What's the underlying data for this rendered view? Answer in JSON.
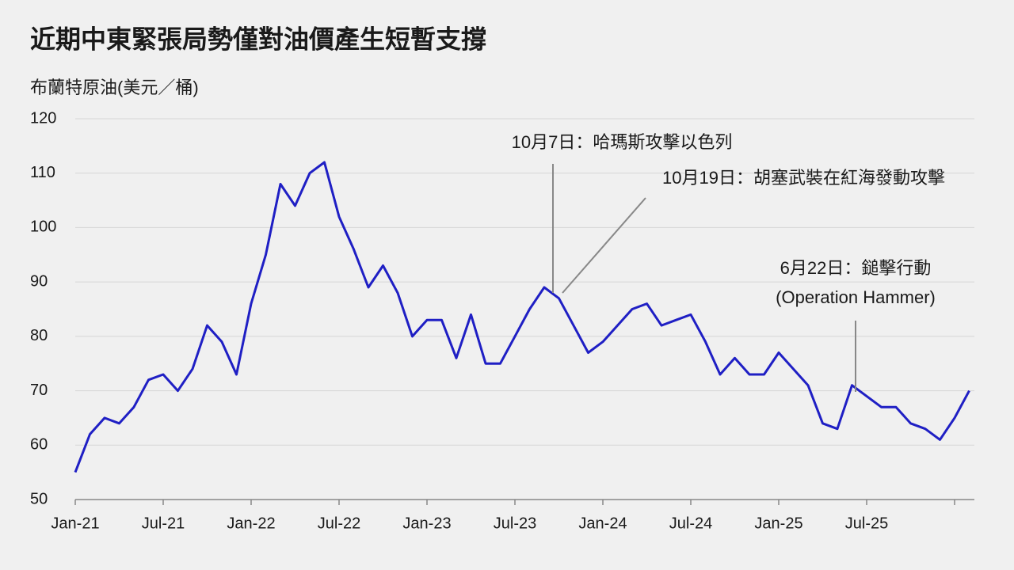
{
  "chart_data": {
    "type": "line",
    "title": "近期中東緊張局勢僅對油價產生短暫支撐",
    "y_label": "布蘭特原油(美元／桶)",
    "x": [
      "2021-01",
      "2021-02",
      "2021-03",
      "2021-04",
      "2021-05",
      "2021-06",
      "2021-07",
      "2021-08",
      "2021-09",
      "2021-10",
      "2021-11",
      "2021-12",
      "2022-01",
      "2022-02",
      "2022-03",
      "2022-04",
      "2022-05",
      "2022-06",
      "2022-07",
      "2022-08",
      "2022-09",
      "2022-10",
      "2022-11",
      "2022-12",
      "2023-01",
      "2023-02",
      "2023-03",
      "2023-04",
      "2023-05",
      "2023-06",
      "2023-07",
      "2023-08",
      "2023-09",
      "2023-10",
      "2023-11",
      "2023-12",
      "2024-01",
      "2024-02",
      "2024-03",
      "2024-04",
      "2024-05",
      "2024-06",
      "2024-07",
      "2024-08",
      "2024-09",
      "2024-10",
      "2024-11",
      "2024-12",
      "2025-01",
      "2025-02",
      "2025-03",
      "2025-04",
      "2025-05",
      "2025-06",
      "2025-07",
      "2025-08",
      "2025-09",
      "2025-10",
      "2025-11",
      "2025-12",
      "2026-01",
      "2026-02"
    ],
    "series": [
      {
        "name": "布蘭特原油",
        "color": "#1f1fc4",
        "values": [
          55,
          62,
          65,
          64,
          67,
          72,
          73,
          70,
          74,
          82,
          79,
          73,
          86,
          95,
          108,
          104,
          110,
          112,
          102,
          96,
          89,
          93,
          88,
          80,
          83,
          83,
          76,
          84,
          75,
          75,
          80,
          85,
          89,
          87,
          82,
          77,
          79,
          82,
          85,
          86,
          82,
          83,
          84,
          79,
          73,
          76,
          73,
          73,
          77,
          74,
          71,
          64,
          63,
          71,
          69,
          67,
          67,
          64,
          63,
          61,
          65,
          70
        ]
      }
    ],
    "ylim": [
      50,
      120
    ],
    "yticks": [
      50,
      60,
      70,
      80,
      90,
      100,
      110,
      120
    ],
    "xticks": [
      {
        "value": "2021-01",
        "label": "Jan-21"
      },
      {
        "value": "2021-07",
        "label": "Jul-21"
      },
      {
        "value": "2022-01",
        "label": "Jan-22"
      },
      {
        "value": "2022-07",
        "label": "Jul-22"
      },
      {
        "value": "2023-01",
        "label": "Jan-23"
      },
      {
        "value": "2023-07",
        "label": "Jul-23"
      },
      {
        "value": "2024-01",
        "label": "Jan-24"
      },
      {
        "value": "2024-07",
        "label": "Jul-24"
      },
      {
        "value": "2025-01",
        "label": "Jan-25"
      },
      {
        "value": "2025-07",
        "label": "Jul-25"
      },
      {
        "value": "2026-01",
        "label": null
      }
    ],
    "grid": true,
    "annotations": [
      {
        "text": [
          "10月7日：哈瑪斯攻擊以色列"
        ]
      },
      {
        "text": [
          "10月19日：胡塞武裝在紅海發動攻擊"
        ]
      },
      {
        "text": [
          "6月22日：鎚擊行動",
          "(Operation Hammer)"
        ]
      }
    ]
  }
}
